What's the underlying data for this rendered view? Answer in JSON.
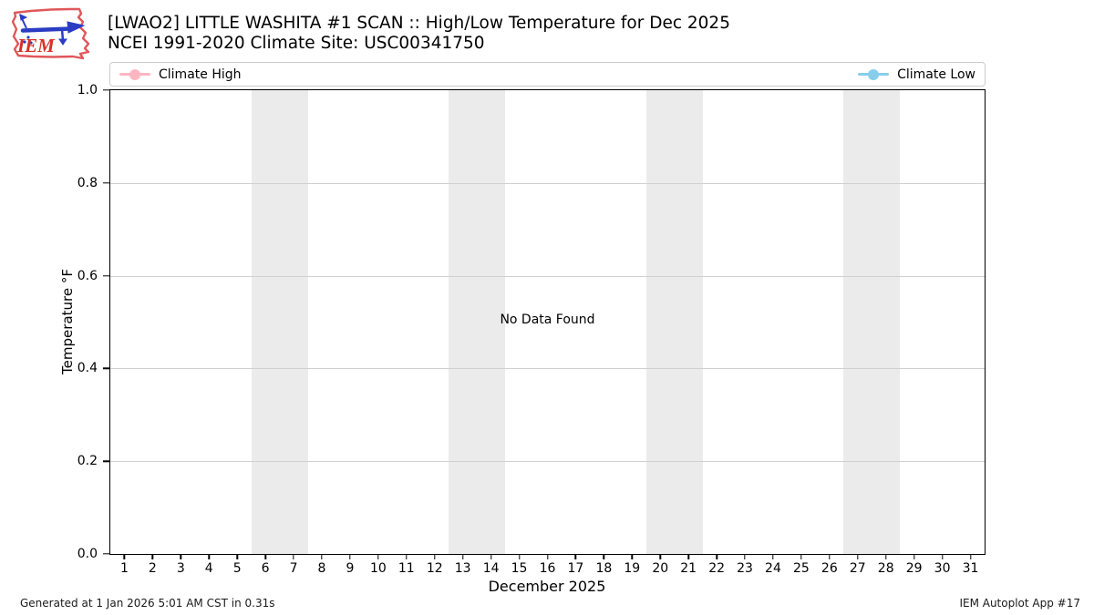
{
  "header": {
    "title_line1": "[LWAO2] LITTLE WASHITA #1 SCAN :: High/Low Temperature for Dec 2025",
    "title_line2": "NCEI 1991-2020 Climate Site: USC00341750",
    "logo_text": "IEM"
  },
  "legend": {
    "items": [
      {
        "label": "Climate High",
        "color": "#ffb6c1"
      },
      {
        "label": "Climate Low",
        "color": "#87ceeb"
      }
    ]
  },
  "chart_data": {
    "type": "line",
    "title": "[LWAO2] LITTLE WASHITA #1 SCAN :: High/Low Temperature for Dec 2025",
    "subtitle": "NCEI 1991-2020 Climate Site: USC00341750",
    "xlabel": "December 2025",
    "ylabel": "Temperature °F",
    "xlim": [
      0.5,
      31.5
    ],
    "ylim": [
      0.0,
      1.0
    ],
    "x_ticks": [
      "1",
      "2",
      "3",
      "4",
      "5",
      "6",
      "7",
      "8",
      "9",
      "10",
      "11",
      "12",
      "13",
      "14",
      "15",
      "16",
      "17",
      "18",
      "19",
      "20",
      "21",
      "22",
      "23",
      "24",
      "25",
      "26",
      "27",
      "28",
      "29",
      "30",
      "31"
    ],
    "y_ticks": [
      "0.0",
      "0.2",
      "0.4",
      "0.6",
      "0.8",
      "1.0"
    ],
    "grid": true,
    "legend_position": "top",
    "series": [
      {
        "name": "Climate High",
        "color": "#ffb6c1",
        "values": []
      },
      {
        "name": "Climate Low",
        "color": "#87ceeb",
        "values": []
      }
    ],
    "no_data_text": "No Data Found",
    "weekend_bands": [
      [
        5.5,
        7.5
      ],
      [
        12.5,
        14.5
      ],
      [
        19.5,
        21.5
      ],
      [
        26.5,
        28.5
      ]
    ],
    "band_color": "#ebebeb"
  },
  "footer": {
    "generated": "Generated at 1 Jan 2026 5:01 AM CST in 0.31s",
    "app": "IEM Autoplot App #17"
  }
}
